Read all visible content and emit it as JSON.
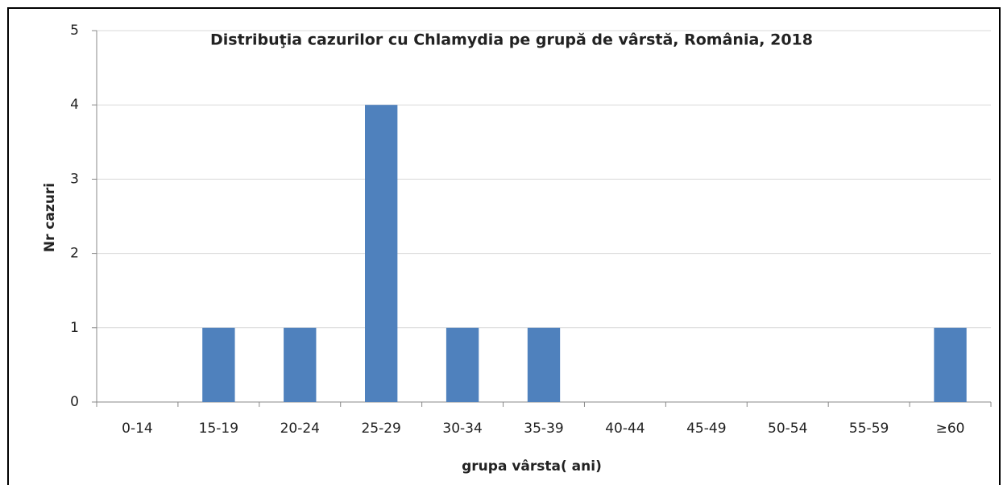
{
  "chart_data": {
    "type": "bar",
    "title": "Distribuţia cazurilor cu Chlamydia pe grupă de vârstă, România, 2018",
    "x_label": "grupa vârsta( ani)",
    "y_label": "Nr cazuri",
    "categories": [
      "0-14",
      "15-19",
      "20-24",
      "25-29",
      "30-34",
      "35-39",
      "40-44",
      "45-49",
      "50-54",
      "55-59",
      "≥60"
    ],
    "values": [
      0,
      1,
      1,
      4,
      1,
      1,
      0,
      0,
      0,
      0,
      1
    ],
    "color": "#4f81bd",
    "ylim": [
      0,
      5
    ],
    "yticks": [
      0,
      1,
      2,
      3,
      4,
      5
    ],
    "grid": true
  }
}
